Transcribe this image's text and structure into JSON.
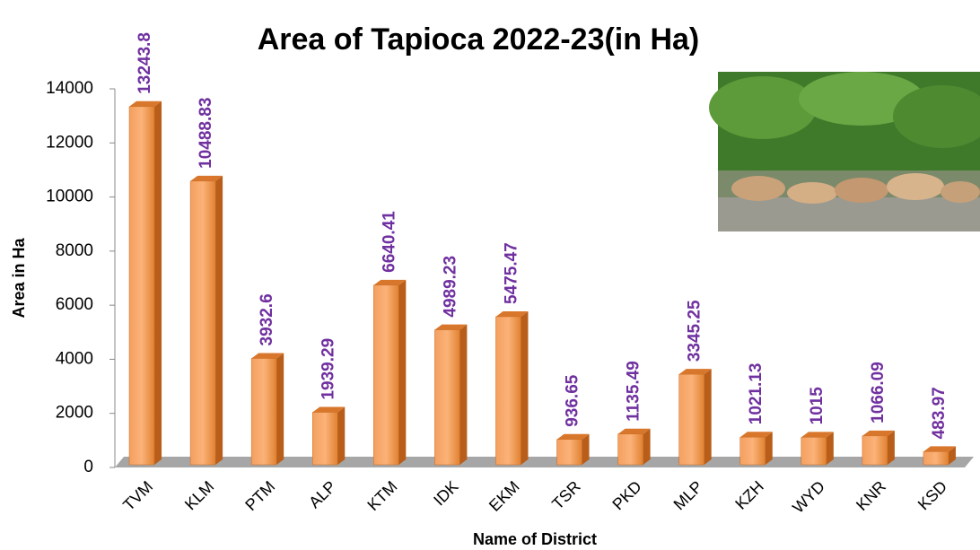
{
  "chart_data": {
    "type": "bar",
    "title": "Area of Tapioca 2022-23(in Ha)",
    "x_label": "Name of District",
    "y_label": "Area in Ha",
    "categories": [
      "TVM",
      "KLM",
      "PTM",
      "ALP",
      "KTM",
      "IDK",
      "EKM",
      "TSR",
      "PKD",
      "MLP",
      "KZH",
      "WYD",
      "KNR",
      "KSD"
    ],
    "values": [
      13243.8,
      10488.83,
      3932.6,
      1939.29,
      6640.41,
      4989.23,
      5475.47,
      936.65,
      1135.49,
      3345.25,
      1021.13,
      1015,
      1066.09,
      483.97
    ],
    "color": "#f79646",
    "ylim": [
      0,
      14000
    ],
    "yticks": [
      0,
      2000,
      4000,
      6000,
      8000,
      10000,
      12000,
      14000
    ]
  }
}
